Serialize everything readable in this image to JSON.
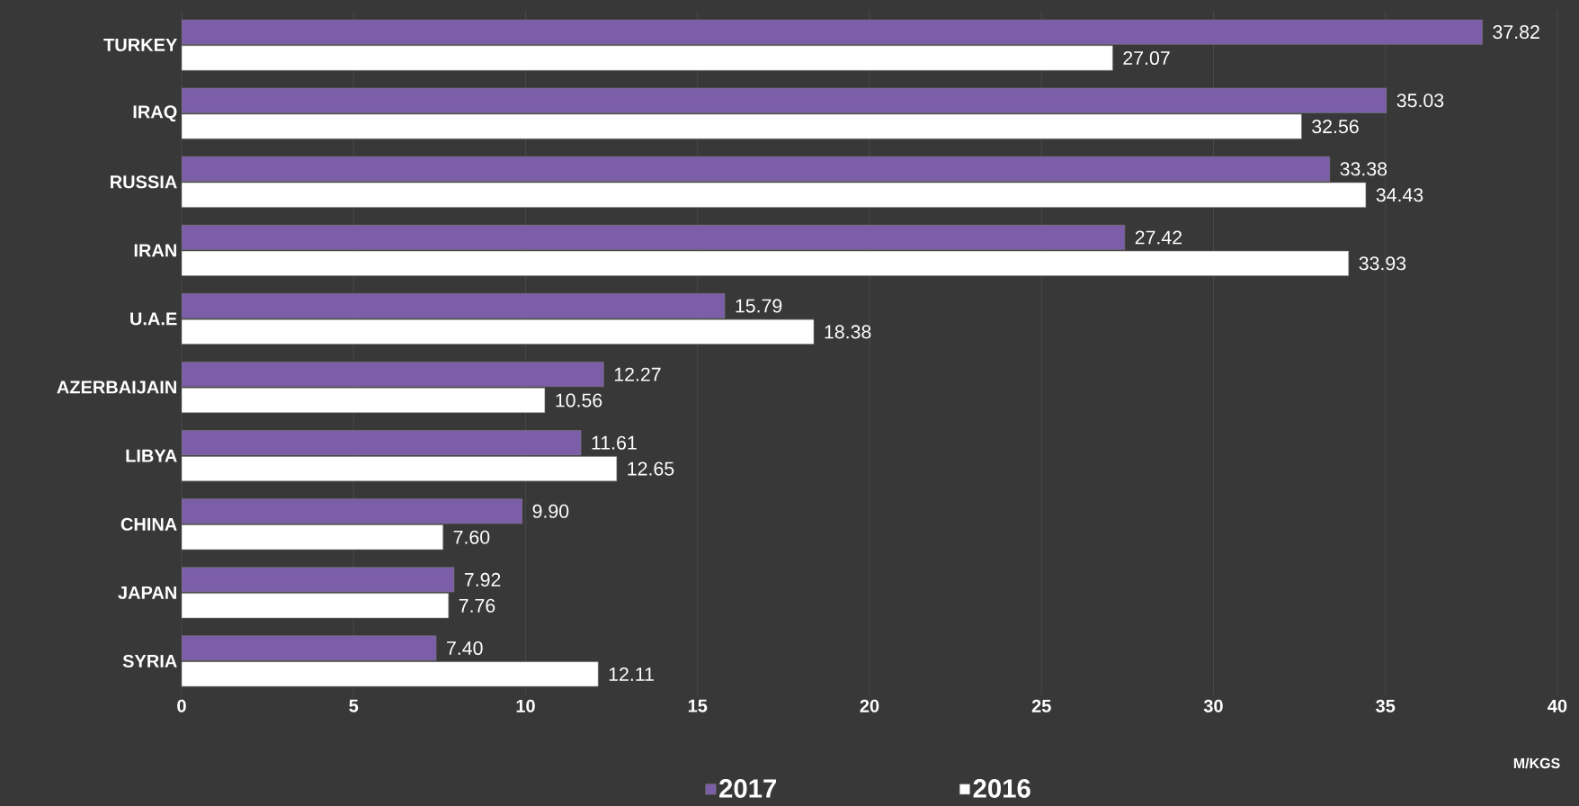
{
  "chart_data": {
    "type": "bar",
    "orientation": "horizontal",
    "xlabel": "M/KGS",
    "categories": [
      "TURKEY",
      "IRAQ",
      "RUSSIA",
      "IRAN",
      "U.A.E",
      "AZERBAIJAIN",
      "LIBYA",
      "CHINA",
      "JAPAN",
      "SYRIA"
    ],
    "series": [
      {
        "name": "2017",
        "color": "#7b5ea7",
        "values": [
          37.82,
          35.03,
          33.38,
          27.42,
          15.79,
          12.27,
          11.61,
          9.9,
          7.92,
          7.4
        ],
        "value_labels": [
          "37.82",
          "35.03",
          "33.38",
          "27.42",
          "15.79",
          "12.27",
          "11.61",
          "9.90",
          "7.92",
          "7.40"
        ]
      },
      {
        "name": "2016",
        "color": "#ffffff",
        "values": [
          27.07,
          32.56,
          34.43,
          33.93,
          18.38,
          10.56,
          12.65,
          7.6,
          7.76,
          12.11
        ],
        "value_labels": [
          "27.07",
          "32.56",
          "34.43",
          "33.93",
          "18.38",
          "10.56",
          "12.65",
          "7.60",
          "7.76",
          "12.11"
        ]
      }
    ],
    "xlim": [
      0,
      40
    ],
    "xticks": [
      0,
      5,
      10,
      15,
      20,
      25,
      30,
      35,
      40
    ],
    "grid": "x",
    "legend": "bottom"
  }
}
